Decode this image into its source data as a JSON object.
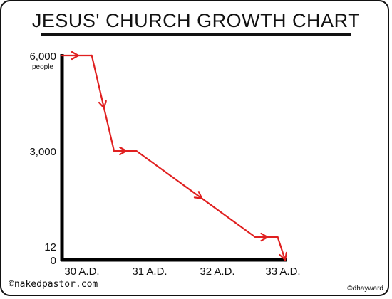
{
  "chart_data": {
    "type": "line",
    "title": "JESUS' CHURCH GROWTH CHART",
    "xlabel": "",
    "ylabel": "",
    "x_ticks": [
      "30 A.D.",
      "31 A.D.",
      "32 A.D.",
      "33 A.D."
    ],
    "y_ticks": [
      {
        "value": 6000,
        "label": "6,000",
        "sublabel": "people"
      },
      {
        "value": 3000,
        "label": "3,000",
        "sublabel": ""
      },
      {
        "value": 12,
        "label": "12",
        "sublabel": ""
      },
      {
        "value": 0,
        "label": "0",
        "sublabel": ""
      }
    ],
    "xlim": [
      30,
      33
    ],
    "ylim": [
      0,
      6000
    ],
    "grid": false,
    "series": [
      {
        "color": "#e02020",
        "points": [
          {
            "x": 30.0,
            "y": 6000
          },
          {
            "x": 30.4,
            "y": 6000
          },
          {
            "x": 30.7,
            "y": 3000
          },
          {
            "x": 31.0,
            "y": 3000
          },
          {
            "x": 32.6,
            "y": 300
          },
          {
            "x": 32.9,
            "y": 300
          },
          {
            "x": 33.0,
            "y": 0
          }
        ]
      }
    ]
  },
  "credits": {
    "left": "©nakedpastor.com",
    "right": "©dhayward"
  }
}
